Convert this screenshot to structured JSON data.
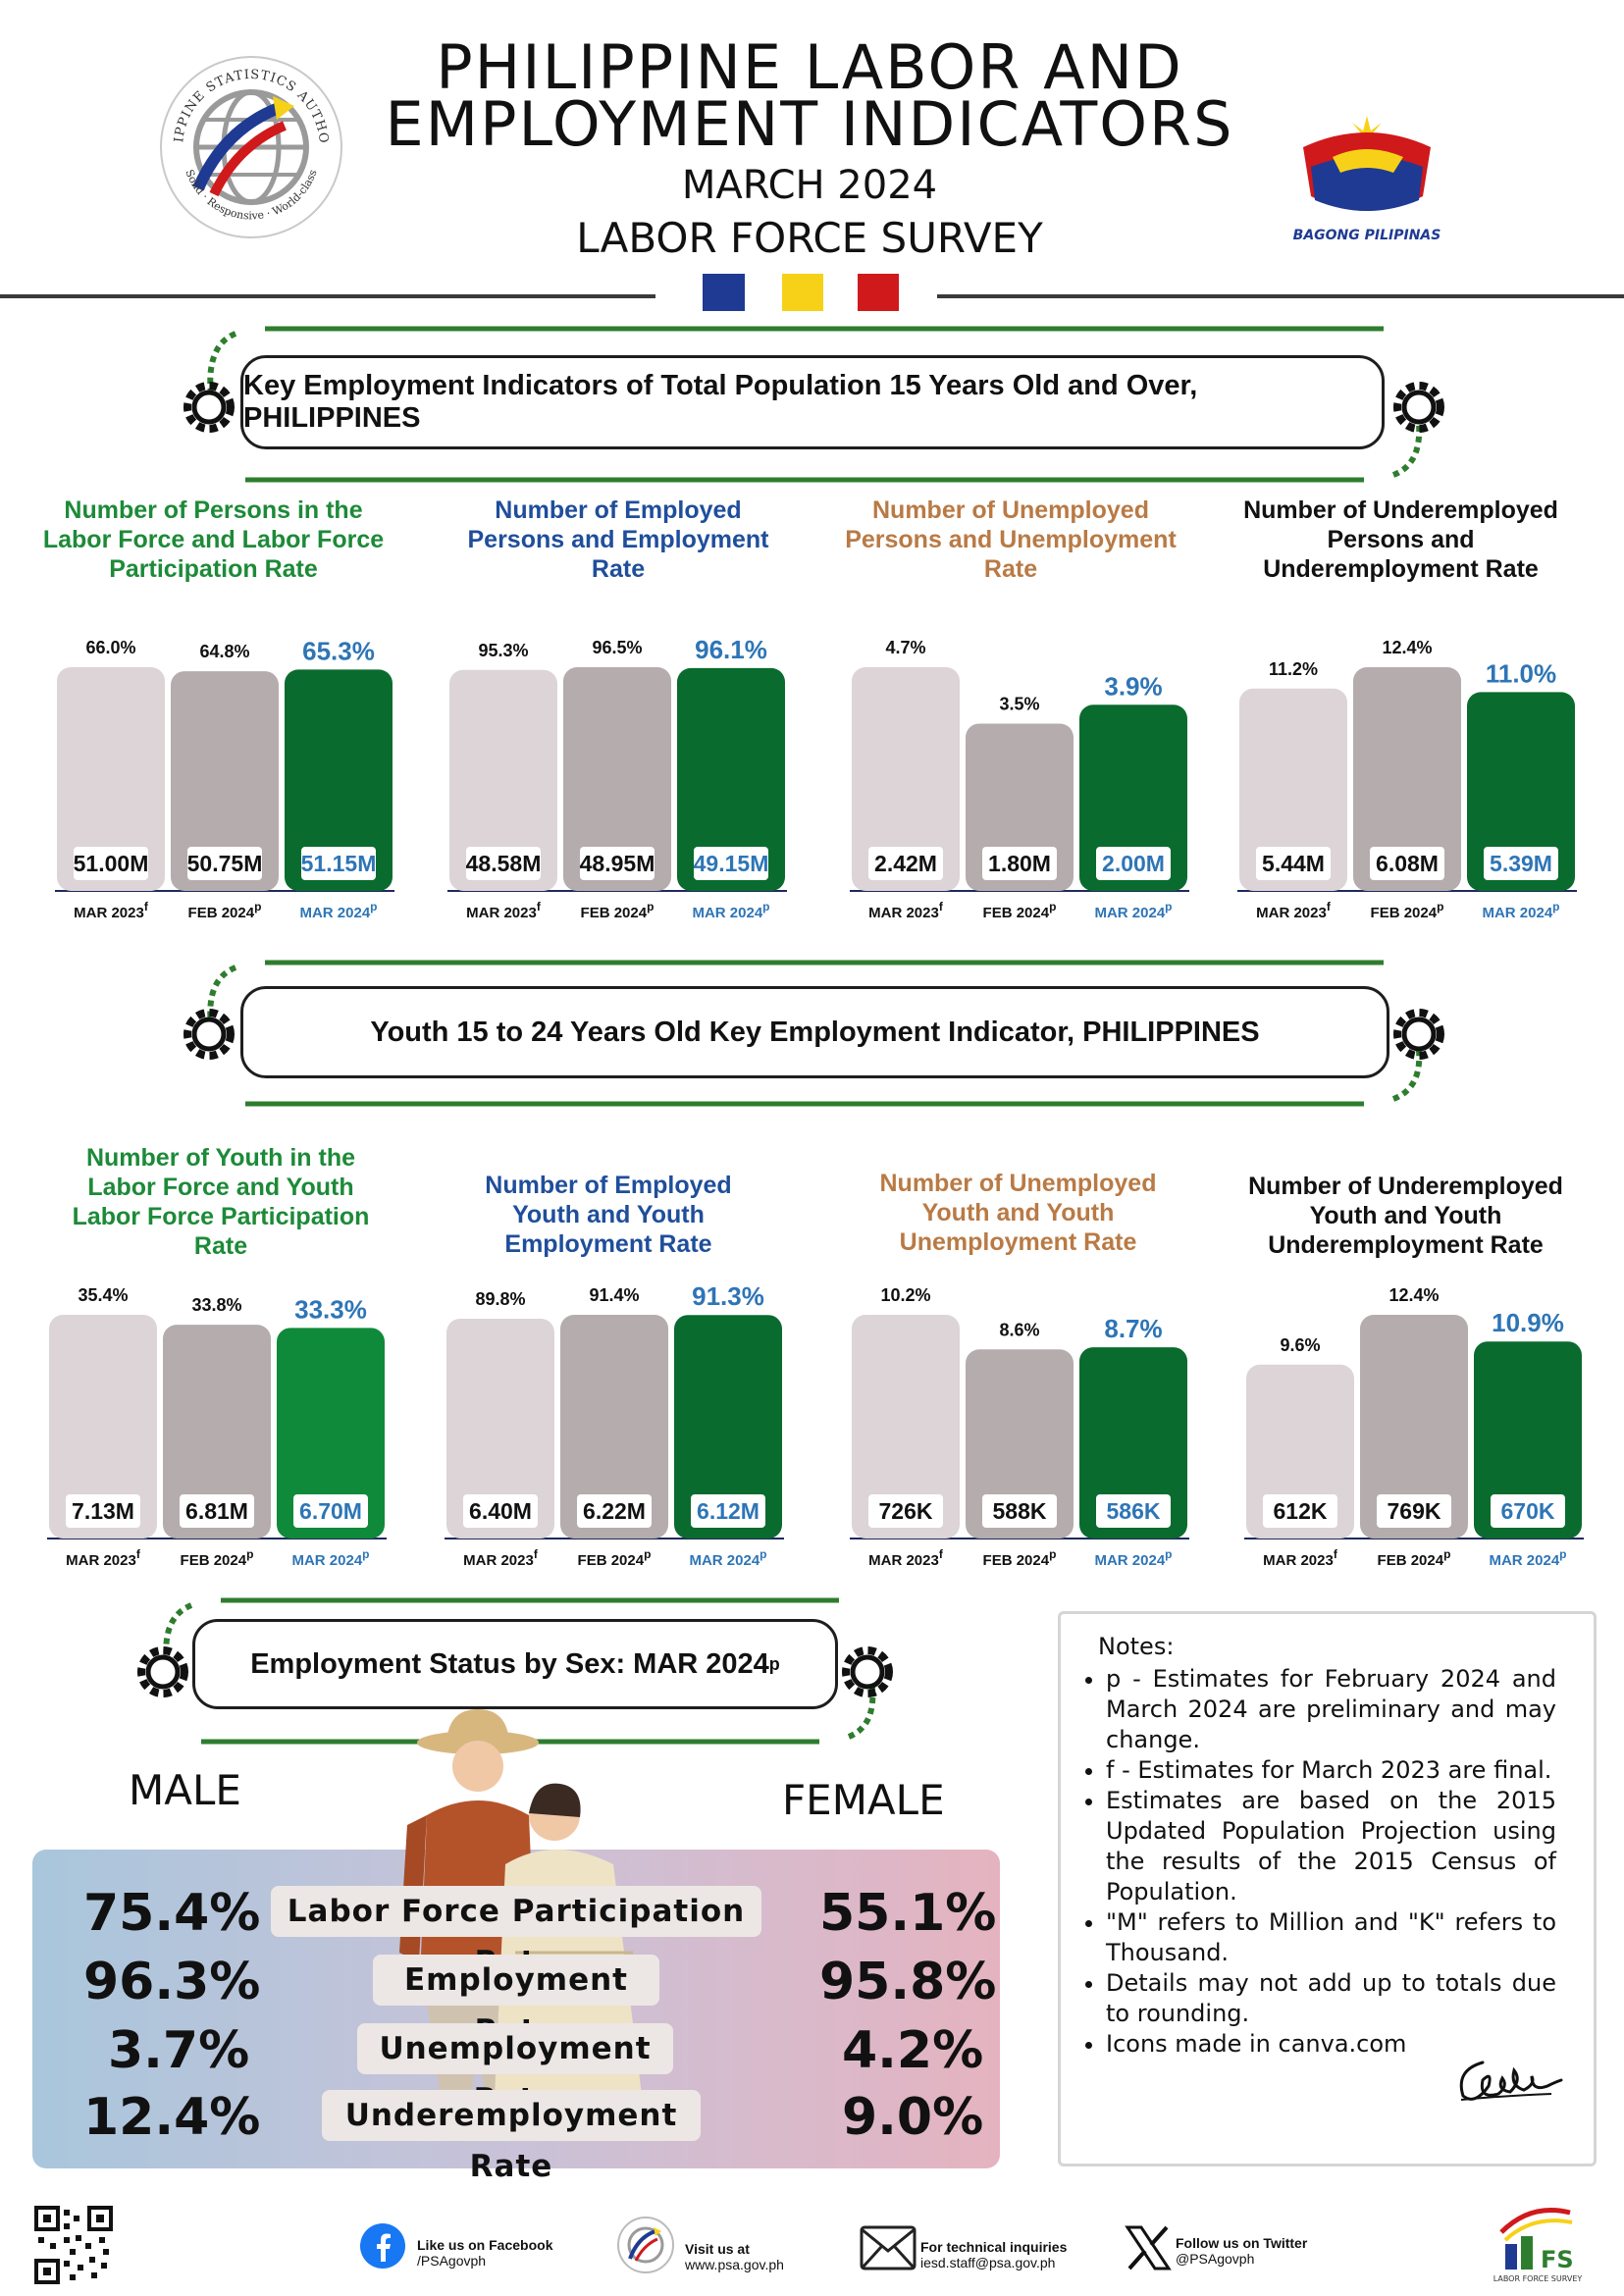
{
  "header": {
    "title_line1": "PHILIPPINE LABOR AND",
    "title_line2": "EMPLOYMENT INDICATORS",
    "subtitle": "MARCH 2024",
    "survey": "LABOR FORCE SURVEY",
    "flag_colors": [
      "#1f3a93",
      "#f7d117",
      "#d0191b"
    ],
    "psa_logo": {
      "top_text": "PHILIPPINE STATISTICS AUTHORITY",
      "bottom_text": "Solid · Responsive · World-class"
    },
    "bp_logo_text": "BAGONG PILIPINAS"
  },
  "section1": {
    "title": "Key Employment Indicators of Total Population 15 Years Old and Over, PHILIPPINES"
  },
  "section2": {
    "title": "Youth 15 to 24 Years Old Key Employment Indicator, PHILIPPINES"
  },
  "section3": {
    "title": "Employment Status by Sex: MAR 2024",
    "title_sup": "p"
  },
  "period_labels": [
    {
      "text": "MAR 2023",
      "sup": "f"
    },
    {
      "text": "FEB 2024",
      "sup": "p"
    },
    {
      "text": "MAR 2024",
      "sup": "p"
    }
  ],
  "colors": {
    "bar_light": "#dcd4d6",
    "bar_mid": "#b5acad",
    "bar_green": "#0a6b2e",
    "bar_green_bright": "#0e8a3a",
    "label_blue": "#2e75b6",
    "title_green": "#1d8a38",
    "title_blue": "#1f4e9b",
    "title_orange": "#b97a45",
    "gear_green": "#2e7d2e"
  },
  "chart_data": [
    {
      "type": "bar",
      "title": "Number of Persons in the Labor Force and Labor Force Participation Rate",
      "title_color": "green",
      "categories": [
        "MAR 2023f",
        "FEB 2024p",
        "MAR 2024p"
      ],
      "rates": [
        66.0,
        64.8,
        65.3
      ],
      "rate_labels": [
        "66.0%",
        "64.8%",
        "65.3%"
      ],
      "counts": [
        "51.00M",
        "50.75M",
        "51.15M"
      ]
    },
    {
      "type": "bar",
      "title": "Number of Employed Persons and Employment Rate",
      "title_color": "blue",
      "categories": [
        "MAR 2023f",
        "FEB 2024p",
        "MAR 2024p"
      ],
      "rates": [
        95.3,
        96.5,
        96.1
      ],
      "rate_labels": [
        "95.3%",
        "96.5%",
        "96.1%"
      ],
      "counts": [
        "48.58M",
        "48.95M",
        "49.15M"
      ]
    },
    {
      "type": "bar",
      "title": "Number of Unemployed Persons and Unemployment Rate",
      "title_color": "orange",
      "categories": [
        "MAR 2023f",
        "FEB 2024p",
        "MAR 2024p"
      ],
      "rates": [
        4.7,
        3.5,
        3.9
      ],
      "rate_labels": [
        "4.7%",
        "3.5%",
        "3.9%"
      ],
      "counts": [
        "2.42M",
        "1.80M",
        "2.00M"
      ]
    },
    {
      "type": "bar",
      "title": "Number of Underemployed Persons and Underemployment Rate",
      "title_color": "black",
      "categories": [
        "MAR 2023f",
        "FEB 2024p",
        "MAR 2024p"
      ],
      "rates": [
        11.2,
        12.4,
        11.0
      ],
      "rate_labels": [
        "11.2%",
        "12.4%",
        "11.0%"
      ],
      "counts": [
        "5.44M",
        "6.08M",
        "5.39M"
      ]
    },
    {
      "type": "bar",
      "title": "Number of Youth in the Labor Force and Youth Labor Force Participation Rate",
      "title_color": "green",
      "categories": [
        "MAR 2023f",
        "FEB 2024p",
        "MAR 2024p"
      ],
      "rates": [
        35.4,
        33.8,
        33.3
      ],
      "rate_labels": [
        "35.4%",
        "33.8%",
        "33.3%"
      ],
      "counts": [
        "7.13M",
        "6.81M",
        "6.70M"
      ]
    },
    {
      "type": "bar",
      "title": "Number of Employed Youth and Youth Employment Rate",
      "title_color": "blue",
      "categories": [
        "MAR 2023f",
        "FEB 2024p",
        "MAR 2024p"
      ],
      "rates": [
        89.8,
        91.4,
        91.3
      ],
      "rate_labels": [
        "89.8%",
        "91.4%",
        "91.3%"
      ],
      "counts": [
        "6.40M",
        "6.22M",
        "6.12M"
      ]
    },
    {
      "type": "bar",
      "title": "Number of Unemployed Youth and Youth Unemployment Rate",
      "title_color": "orange",
      "categories": [
        "MAR 2023f",
        "FEB 2024p",
        "MAR 2024p"
      ],
      "rates": [
        10.2,
        8.6,
        8.7
      ],
      "rate_labels": [
        "10.2%",
        "8.6%",
        "8.7%"
      ],
      "counts": [
        "726K",
        "588K",
        "586K"
      ]
    },
    {
      "type": "bar",
      "title": "Number of Underemployed Youth and Youth Underemployment Rate",
      "title_color": "black",
      "categories": [
        "MAR 2023f",
        "FEB 2024p",
        "MAR 2024p"
      ],
      "rates": [
        9.6,
        12.4,
        10.9
      ],
      "rate_labels": [
        "9.6%",
        "12.4%",
        "10.9%"
      ],
      "counts": [
        "612K",
        "769K",
        "670K"
      ]
    },
    {
      "type": "table",
      "title": "Employment Status by Sex: MAR 2024p",
      "columns": [
        "MALE",
        "",
        "FEMALE"
      ],
      "rows": [
        {
          "label": "Labor Force Participation Rate",
          "male": "75.4%",
          "female": "55.1%"
        },
        {
          "label": "Employment Rate",
          "male": "96.3%",
          "female": "95.8%"
        },
        {
          "label": "Unemployment Rate",
          "male": "3.7%",
          "female": "4.2%"
        },
        {
          "label": "Underemployment Rate",
          "male": "12.4%",
          "female": "9.0%"
        }
      ]
    }
  ],
  "notes": {
    "heading": "Notes:",
    "items": [
      "p - Estimates for February 2024 and March 2024 are preliminary and may change.",
      "f - Estimates for March 2023 are final.",
      "Estimates are based on the 2015 Updated Population Projection using the results of the 2015 Census of Population.",
      "\"M\" refers to Million and \"K\" refers to Thousand.",
      "Details may not add up to totals due to rounding.",
      "Icons made in canva.com"
    ]
  },
  "footer": {
    "facebook": {
      "line1": "Like us on Facebook",
      "line2": "/PSAgovph"
    },
    "website": {
      "line1": "Visit us at",
      "line2": "www.psa.gov.ph"
    },
    "email": {
      "line1": "For technical inquiries",
      "line2": "iesd.staff@psa.gov.ph"
    },
    "twitter": {
      "line1": "Follow us on Twitter",
      "line2": "@PSAgovph"
    },
    "lfs_logo_text": "LABOR FORCE SURVEY"
  }
}
